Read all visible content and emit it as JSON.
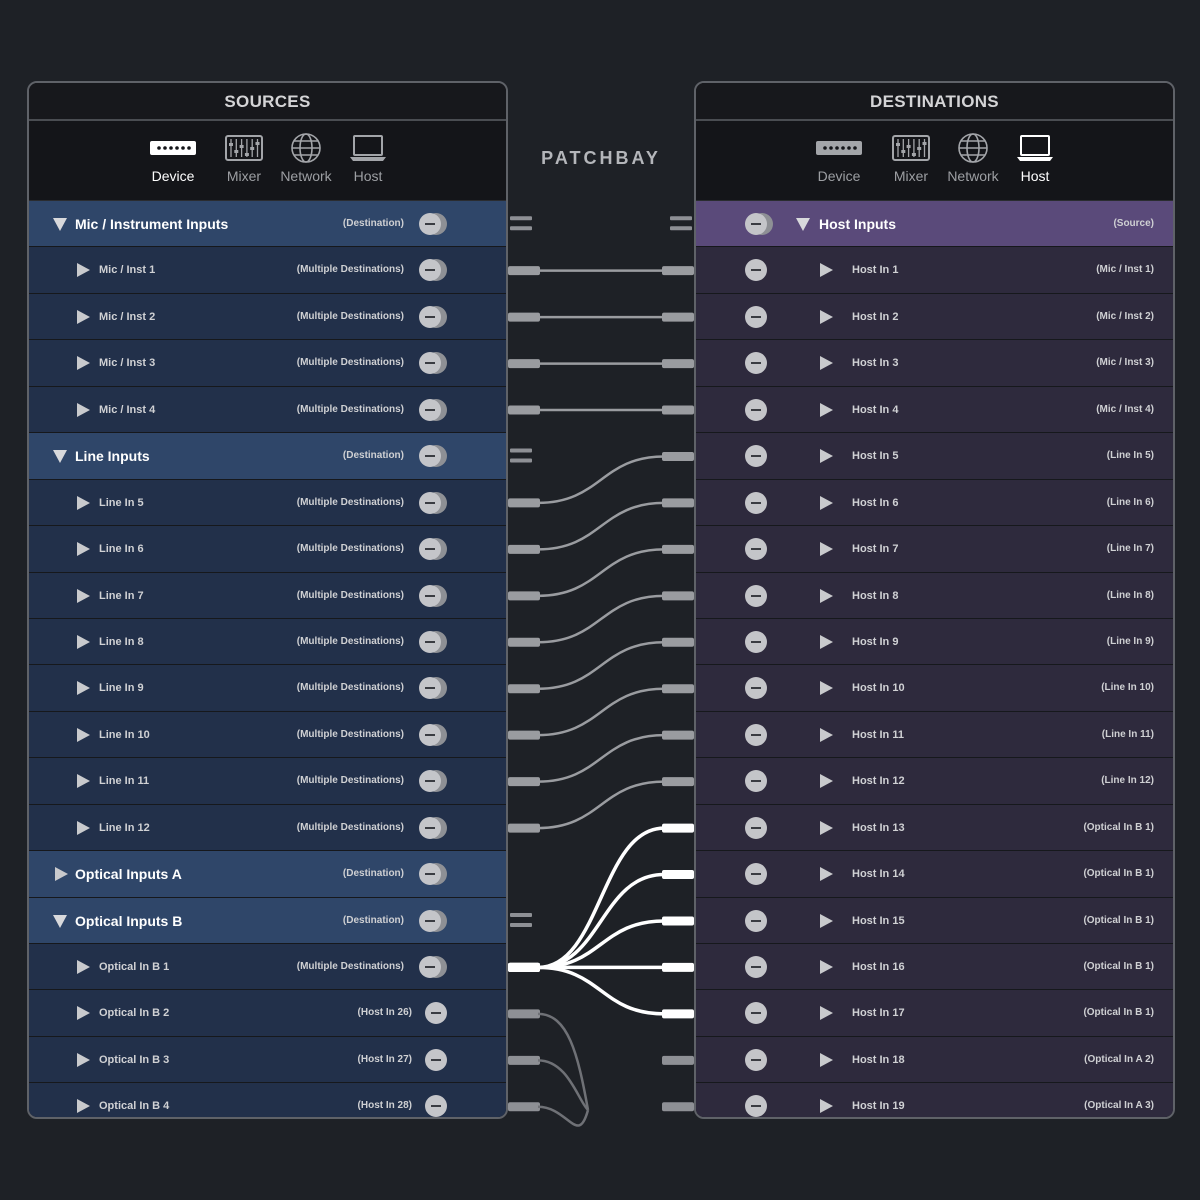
{
  "center_title": "PATCHBAY",
  "sources": {
    "title": "SOURCES",
    "tabs": [
      {
        "label": "Device",
        "icon": "device-icon",
        "active": true
      },
      {
        "label": "Mixer",
        "icon": "mixer-icon",
        "active": false
      },
      {
        "label": "Network",
        "icon": "network-icon",
        "active": false
      },
      {
        "label": "Host",
        "icon": "host-laptop-icon",
        "active": false
      }
    ],
    "rows": [
      {
        "type": "group",
        "expanded": true,
        "label": "Mic / Instrument Inputs",
        "annotation": "(Destination)",
        "double": true
      },
      {
        "type": "item",
        "label": "Mic / Inst 1",
        "annotation": "(Multiple Destinations)",
        "double": true
      },
      {
        "type": "item",
        "label": "Mic / Inst 2",
        "annotation": "(Multiple Destinations)",
        "double": true
      },
      {
        "type": "item",
        "label": "Mic / Inst 3",
        "annotation": "(Multiple Destinations)",
        "double": true
      },
      {
        "type": "item",
        "label": "Mic / Inst 4",
        "annotation": "(Multiple Destinations)",
        "double": true
      },
      {
        "type": "group",
        "expanded": true,
        "label": "Line Inputs",
        "annotation": "(Destination)",
        "double": true
      },
      {
        "type": "item",
        "label": "Line In 5",
        "annotation": "(Multiple Destinations)",
        "double": true
      },
      {
        "type": "item",
        "label": "Line In 6",
        "annotation": "(Multiple Destinations)",
        "double": true
      },
      {
        "type": "item",
        "label": "Line In 7",
        "annotation": "(Multiple Destinations)",
        "double": true
      },
      {
        "type": "item",
        "label": "Line In 8",
        "annotation": "(Multiple Destinations)",
        "double": true
      },
      {
        "type": "item",
        "label": "Line In 9",
        "annotation": "(Multiple Destinations)",
        "double": true
      },
      {
        "type": "item",
        "label": "Line In 10",
        "annotation": "(Multiple Destinations)",
        "double": true
      },
      {
        "type": "item",
        "label": "Line In 11",
        "annotation": "(Multiple Destinations)",
        "double": true
      },
      {
        "type": "item",
        "label": "Line In 12",
        "annotation": "(Multiple Destinations)",
        "double": true
      },
      {
        "type": "group",
        "expanded": false,
        "label": "Optical Inputs A",
        "annotation": "(Destination)",
        "double": true
      },
      {
        "type": "group",
        "expanded": true,
        "label": "Optical Inputs B",
        "annotation": "(Destination)",
        "double": true
      },
      {
        "type": "item",
        "label": "Optical In B 1",
        "annotation": "(Multiple Destinations)",
        "double": true
      },
      {
        "type": "item",
        "label": "Optical In B 2",
        "annotation": "(Host In 26)",
        "double": false
      },
      {
        "type": "item",
        "label": "Optical In B 3",
        "annotation": "(Host In 27)",
        "double": false
      },
      {
        "type": "item",
        "label": "Optical In B 4",
        "annotation": "(Host In 28)",
        "double": false
      }
    ]
  },
  "destinations": {
    "title": "DESTINATIONS",
    "tabs": [
      {
        "label": "Device",
        "icon": "device-icon",
        "active": false
      },
      {
        "label": "Mixer",
        "icon": "mixer-icon",
        "active": false
      },
      {
        "label": "Network",
        "icon": "network-icon",
        "active": false
      },
      {
        "label": "Host",
        "icon": "host-laptop-icon",
        "active": true
      }
    ],
    "rows": [
      {
        "type": "group",
        "expanded": true,
        "label": "Host Inputs",
        "annotation": "(Source)",
        "double": true
      },
      {
        "type": "item",
        "label": "Host In 1",
        "annotation": "(Mic / Inst 1)"
      },
      {
        "type": "item",
        "label": "Host In 2",
        "annotation": "(Mic / Inst 2)"
      },
      {
        "type": "item",
        "label": "Host In 3",
        "annotation": "(Mic / Inst 3)"
      },
      {
        "type": "item",
        "label": "Host In 4",
        "annotation": "(Mic / Inst 4)"
      },
      {
        "type": "item",
        "label": "Host In 5",
        "annotation": "(Line In 5)"
      },
      {
        "type": "item",
        "label": "Host In 6",
        "annotation": "(Line In 6)"
      },
      {
        "type": "item",
        "label": "Host In 7",
        "annotation": "(Line In 7)"
      },
      {
        "type": "item",
        "label": "Host In 8",
        "annotation": "(Line In 8)"
      },
      {
        "type": "item",
        "label": "Host In 9",
        "annotation": "(Line In 9)"
      },
      {
        "type": "item",
        "label": "Host In 10",
        "annotation": "(Line In 10)"
      },
      {
        "type": "item",
        "label": "Host In 11",
        "annotation": "(Line In 11)"
      },
      {
        "type": "item",
        "label": "Host In 12",
        "annotation": "(Line In 12)"
      },
      {
        "type": "item",
        "label": "Host In 13",
        "annotation": "(Optical In B 1)"
      },
      {
        "type": "item",
        "label": "Host In 14",
        "annotation": "(Optical In B 1)"
      },
      {
        "type": "item",
        "label": "Host In 15",
        "annotation": "(Optical In B 1)"
      },
      {
        "type": "item",
        "label": "Host In 16",
        "annotation": "(Optical In B 1)"
      },
      {
        "type": "item",
        "label": "Host In 17",
        "annotation": "(Optical In B 1)"
      },
      {
        "type": "item",
        "label": "Host In 18",
        "annotation": "(Optical In A 2)"
      },
      {
        "type": "item",
        "label": "Host In 19",
        "annotation": "(Optical In A 3)"
      }
    ]
  },
  "connections": [
    {
      "from": "Mic / Inst 1",
      "to": "Host In 1",
      "highlighted": false
    },
    {
      "from": "Mic / Inst 2",
      "to": "Host In 2",
      "highlighted": false
    },
    {
      "from": "Mic / Inst 3",
      "to": "Host In 3",
      "highlighted": false
    },
    {
      "from": "Mic / Inst 4",
      "to": "Host In 4",
      "highlighted": false
    },
    {
      "from": "Line In 5",
      "to": "Host In 5",
      "highlighted": false
    },
    {
      "from": "Line In 6",
      "to": "Host In 6",
      "highlighted": false
    },
    {
      "from": "Line In 7",
      "to": "Host In 7",
      "highlighted": false
    },
    {
      "from": "Line In 8",
      "to": "Host In 8",
      "highlighted": false
    },
    {
      "from": "Line In 9",
      "to": "Host In 9",
      "highlighted": false
    },
    {
      "from": "Line In 10",
      "to": "Host In 10",
      "highlighted": false
    },
    {
      "from": "Line In 11",
      "to": "Host In 11",
      "highlighted": false
    },
    {
      "from": "Line In 12",
      "to": "Host In 12",
      "highlighted": false
    },
    {
      "from": "Optical In B 1",
      "to": "Host In 13",
      "highlighted": true
    },
    {
      "from": "Optical In B 1",
      "to": "Host In 14",
      "highlighted": true
    },
    {
      "from": "Optical In B 1",
      "to": "Host In 15",
      "highlighted": true
    },
    {
      "from": "Optical In B 1",
      "to": "Host In 16",
      "highlighted": true
    },
    {
      "from": "Optical In B 1",
      "to": "Host In 17",
      "highlighted": true
    }
  ],
  "colors": {
    "source_row": "#22304a",
    "source_group": "#2f4669",
    "dest_row": "#2e2a3d",
    "dest_group": "#5a4a7a",
    "cable": "#9a9ca0",
    "cable_highlight": "#ffffff"
  }
}
